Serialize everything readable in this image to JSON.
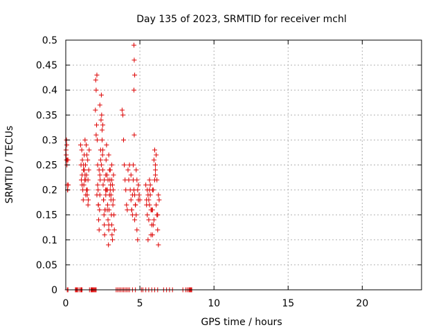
{
  "chart_data": {
    "type": "scatter",
    "title": "Day 135 of 2023, SRMTID for receiver mchl",
    "xlabel": "GPS time / hours",
    "ylabel": "SRMTID / TECUs",
    "xlim": [
      0,
      24
    ],
    "ylim": [
      0,
      0.5
    ],
    "xticks": [
      0,
      5,
      10,
      15,
      20
    ],
    "yticks": [
      0,
      0.05,
      0.1,
      0.15,
      0.2,
      0.25,
      0.3,
      0.35,
      0.4,
      0.45,
      0.5
    ],
    "xtick_labels": [
      "0",
      "5",
      "10",
      "15",
      "20"
    ],
    "ytick_labels": [
      "0",
      "0.05",
      "0.1",
      "0.15",
      "0.2",
      "0.25",
      "0.3",
      "0.35",
      "0.4",
      "0.45",
      "0.5"
    ],
    "grid": true,
    "marker": "+",
    "color": "#dd0000",
    "series": [
      {
        "x": [
          0.02,
          0.03,
          0.05,
          0.05,
          0.07,
          0.08,
          0.1,
          0.1,
          0.12,
          0.13,
          0.15,
          0.17,
          1.0,
          1.03,
          1.05,
          1.08,
          1.1,
          1.12,
          1.15,
          1.18,
          1.2,
          1.22,
          1.25,
          1.28,
          1.3,
          1.33,
          1.35,
          1.38,
          1.4,
          1.42,
          1.45,
          1.48,
          1.5,
          1.52,
          1.55,
          1.58,
          1.1,
          1.2,
          1.3,
          1.4,
          1.5,
          1.25,
          1.35,
          1.45,
          2.0,
          2.02,
          2.05,
          2.08,
          2.1,
          2.12,
          2.15,
          2.18,
          2.2,
          2.22,
          2.25,
          2.28,
          2.3,
          2.32,
          2.35,
          2.38,
          2.4,
          2.42,
          2.45,
          2.48,
          2.5,
          2.52,
          2.55,
          2.58,
          2.6,
          2.62,
          2.65,
          2.68,
          2.7,
          2.72,
          2.75,
          2.78,
          2.8,
          2.82,
          2.85,
          2.88,
          2.9,
          2.92,
          2.95,
          2.98,
          3.0,
          3.02,
          3.05,
          3.08,
          3.1,
          3.12,
          3.15,
          3.18,
          3.2,
          3.22,
          3.25,
          3.28,
          2.1,
          2.2,
          2.3,
          2.4,
          2.5,
          2.6,
          2.7,
          2.8,
          2.9,
          3.0,
          3.1,
          3.2,
          2.15,
          2.25,
          2.35,
          2.45,
          2.55,
          2.65,
          2.75,
          2.85,
          2.95,
          3.05,
          3.15,
          2.05,
          2.3,
          2.5,
          2.9,
          3.1,
          3.8,
          3.85,
          3.9,
          3.95,
          4.0,
          4.05,
          4.1,
          4.15,
          4.2,
          4.25,
          4.3,
          4.35,
          4.4,
          4.45,
          4.5,
          4.55,
          4.6,
          4.65,
          4.7,
          4.75,
          4.8,
          4.85,
          4.9,
          4.95,
          5.0,
          4.4,
          4.5,
          4.6,
          4.7,
          4.8,
          4.9,
          4.45,
          4.55,
          4.65,
          4.75,
          4.85,
          4.6,
          4.62,
          4.65,
          4.6,
          4.62,
          5.4,
          5.45,
          5.5,
          5.55,
          5.6,
          5.65,
          5.7,
          5.75,
          5.8,
          5.85,
          5.9,
          5.95,
          6.0,
          6.05,
          6.1,
          6.15,
          6.2,
          6.25,
          6.3,
          5.5,
          5.6,
          5.7,
          5.8,
          5.9,
          6.0,
          6.1,
          6.2,
          5.55,
          5.65,
          5.75,
          5.85,
          5.95,
          6.05,
          6.15,
          5.45,
          5.65,
          5.85,
          6.05,
          6.25,
          0.1,
          0.15,
          0.65,
          0.7,
          0.75,
          0.8,
          0.9,
          1.0,
          1.05,
          1.1,
          1.6,
          1.7,
          1.75,
          1.8,
          1.85,
          1.9,
          1.95,
          2.0,
          2.05,
          3.4,
          3.5,
          3.6,
          3.7,
          3.8,
          3.9,
          4.0,
          4.1,
          4.2,
          4.3,
          4.5,
          4.7,
          5.1,
          5.2,
          5.4,
          5.6,
          5.8,
          6.0,
          6.2,
          6.6,
          6.8,
          7.0,
          7.2,
          7.9,
          8.1,
          8.2,
          8.3,
          8.35,
          8.4,
          8.45,
          8.5
        ],
        "y": [
          0.28,
          0.27,
          0.3,
          0.26,
          0.29,
          0.25,
          0.26,
          0.21,
          0.2,
          0.2,
          0.26,
          0.21,
          0.29,
          0.25,
          0.22,
          0.28,
          0.23,
          0.26,
          0.2,
          0.18,
          0.24,
          0.21,
          0.27,
          0.22,
          0.3,
          0.25,
          0.19,
          0.29,
          0.23,
          0.27,
          0.2,
          0.26,
          0.22,
          0.18,
          0.24,
          0.28,
          0.21,
          0.25,
          0.23,
          0.2,
          0.17,
          0.24,
          0.22,
          0.19,
          0.36,
          0.42,
          0.4,
          0.33,
          0.43,
          0.3,
          0.25,
          0.2,
          0.17,
          0.14,
          0.12,
          0.16,
          0.19,
          0.22,
          0.28,
          0.34,
          0.39,
          0.35,
          0.32,
          0.27,
          0.24,
          0.21,
          0.18,
          0.15,
          0.13,
          0.11,
          0.16,
          0.2,
          0.23,
          0.26,
          0.29,
          0.23,
          0.2,
          0.17,
          0.14,
          0.09,
          0.12,
          0.16,
          0.19,
          0.22,
          0.24,
          0.21,
          0.18,
          0.15,
          0.13,
          0.11,
          0.1,
          0.17,
          0.2,
          0.23,
          0.15,
          0.12,
          0.19,
          0.17,
          0.23,
          0.25,
          0.28,
          0.22,
          0.19,
          0.16,
          0.13,
          0.2,
          0.22,
          0.18,
          0.21,
          0.24,
          0.26,
          0.3,
          0.18,
          0.16,
          0.2,
          0.22,
          0.24,
          0.19,
          0.21,
          0.31,
          0.37,
          0.33,
          0.27,
          0.25,
          0.36,
          0.35,
          0.3,
          0.25,
          0.22,
          0.2,
          0.17,
          0.16,
          0.24,
          0.22,
          0.25,
          0.2,
          0.18,
          0.16,
          0.15,
          0.22,
          0.2,
          0.19,
          0.17,
          0.15,
          0.12,
          0.1,
          0.21,
          0.19,
          0.18,
          0.23,
          0.19,
          0.2,
          0.17,
          0.22,
          0.18,
          0.16,
          0.25,
          0.14,
          0.24,
          0.2,
          0.49,
          0.46,
          0.43,
          0.4,
          0.31,
          0.21,
          0.17,
          0.15,
          0.1,
          0.18,
          0.22,
          0.19,
          0.16,
          0.13,
          0.11,
          0.2,
          0.26,
          0.28,
          0.23,
          0.17,
          0.15,
          0.12,
          0.09,
          0.18,
          0.2,
          0.14,
          0.21,
          0.16,
          0.13,
          0.22,
          0.27,
          0.15,
          0.19,
          0.17,
          0.11,
          0.2,
          0.14,
          0.25,
          0.22,
          0.18,
          0.2,
          0.16,
          0.24,
          0.19,
          0,
          0,
          0,
          0,
          0,
          0,
          0,
          0,
          0,
          0,
          0,
          0,
          0,
          0,
          0,
          0,
          0,
          0,
          0,
          0,
          0,
          0,
          0,
          0,
          0,
          0,
          0,
          0,
          0,
          0,
          0,
          0,
          0,
          0,
          0,
          0,
          0,
          0,
          0,
          0,
          0,
          0,
          0,
          0,
          0,
          0,
          0,
          0,
          0,
          0
        ]
      }
    ]
  }
}
